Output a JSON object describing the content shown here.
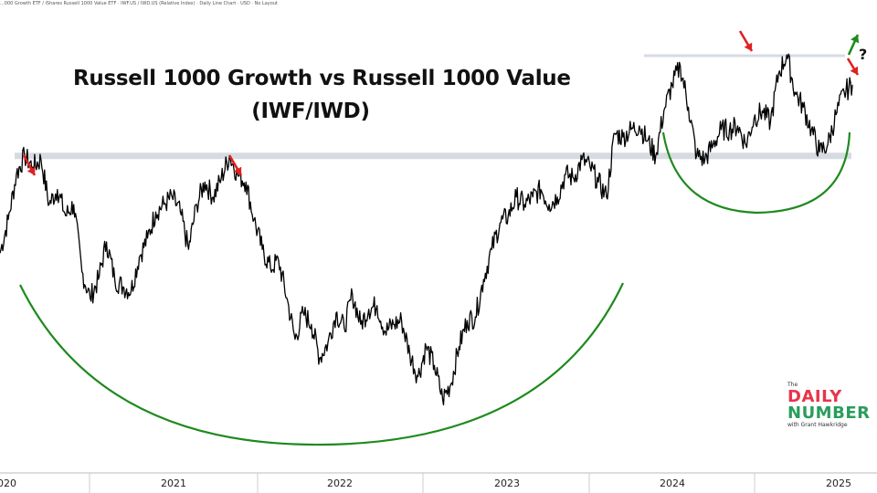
{
  "source_text": "...000 Growth ETF / iShares Russell 1000 Value ETF · IWF.US / IWD.US (Relative Index) · Daily Line Chart · USD · No Layout",
  "title_line1": "Russell 1000 Growth vs Russell 1000 Value",
  "title_line2": "(IWF/IWD)",
  "question_mark": "?",
  "logo": {
    "the": "The",
    "daily": "DAILY",
    "number": "NUMBER",
    "with": "with Grant Hawkridge"
  },
  "colors": {
    "line": "#000000",
    "resistance": "#d6dbe2",
    "cup": "#1e8a1e",
    "arrow_down": "#e02020",
    "arrow_up": "#1e8a1e"
  },
  "chart_data": {
    "type": "line",
    "title": "Russell 1000 Growth vs Russell 1000 Value (IWF/IWD)",
    "xlabel": "",
    "ylabel": "",
    "x_ticks": [
      "2020",
      "2021",
      "2022",
      "2023",
      "2024",
      "2025"
    ],
    "xlim": [
      2019.85,
      2025.2
    ],
    "ylim": [
      0,
      100
    ],
    "grid": false,
    "resistance_level": 73,
    "series": [
      {
        "x": [
          2019.85,
          2019.9,
          2019.95,
          2020.0,
          2020.05,
          2020.1,
          2020.15,
          2020.2,
          2020.25,
          2020.3,
          2020.35,
          2020.4,
          2020.45,
          2020.5,
          2020.55,
          2020.6,
          2020.65,
          2020.7,
          2020.75,
          2020.8,
          2020.85,
          2020.9,
          2020.95,
          2021.0,
          2021.05,
          2021.1,
          2021.15,
          2021.2,
          2021.25,
          2021.3,
          2021.35,
          2021.4,
          2021.45,
          2021.5,
          2021.55,
          2021.6,
          2021.65,
          2021.7,
          2021.75,
          2021.8,
          2021.85,
          2021.9,
          2021.95,
          2022.0,
          2022.05,
          2022.1,
          2022.15,
          2022.2,
          2022.25,
          2022.3,
          2022.35,
          2022.4,
          2022.45,
          2022.5,
          2022.55,
          2022.6,
          2022.65,
          2022.7,
          2022.75,
          2022.8,
          2022.85,
          2022.9,
          2022.95,
          2023.0,
          2023.05,
          2023.1,
          2023.15,
          2023.2,
          2023.25,
          2023.3,
          2023.35,
          2023.4,
          2023.45,
          2023.5,
          2023.55,
          2023.6,
          2023.65,
          2023.7,
          2023.75,
          2023.8,
          2023.85,
          2023.9,
          2023.95,
          2024.0,
          2024.05,
          2024.1,
          2024.15,
          2024.2,
          2024.25,
          2024.3,
          2024.35,
          2024.4,
          2024.45,
          2024.5,
          2024.55,
          2024.6,
          2024.65,
          2024.7,
          2024.75,
          2024.8,
          2024.85,
          2024.9,
          2024.95,
          2025.0,
          2025.05
        ],
        "values": [
          47,
          56,
          68,
          73,
          70,
          72,
          60,
          64,
          57,
          60,
          42,
          35,
          40,
          50,
          40,
          38,
          37,
          46,
          51,
          58,
          60,
          62,
          58,
          48,
          60,
          66,
          62,
          67,
          73,
          68,
          66,
          56,
          48,
          43,
          45,
          35,
          24,
          31,
          28,
          19,
          23,
          31,
          27,
          36,
          28,
          32,
          33,
          26,
          28,
          29,
          20,
          14,
          22,
          17,
          8,
          12,
          22,
          29,
          30,
          40,
          48,
          55,
          57,
          62,
          60,
          62,
          64,
          60,
          62,
          68,
          67,
          72,
          70,
          66,
          62,
          79,
          78,
          80,
          81,
          77,
          73,
          85,
          92,
          97,
          86,
          73,
          72,
          76,
          80,
          80,
          81,
          76,
          83,
          85,
          82,
          95,
          100,
          90,
          86,
          80,
          74,
          76,
          84,
          90,
          92
        ]
      }
    ]
  }
}
